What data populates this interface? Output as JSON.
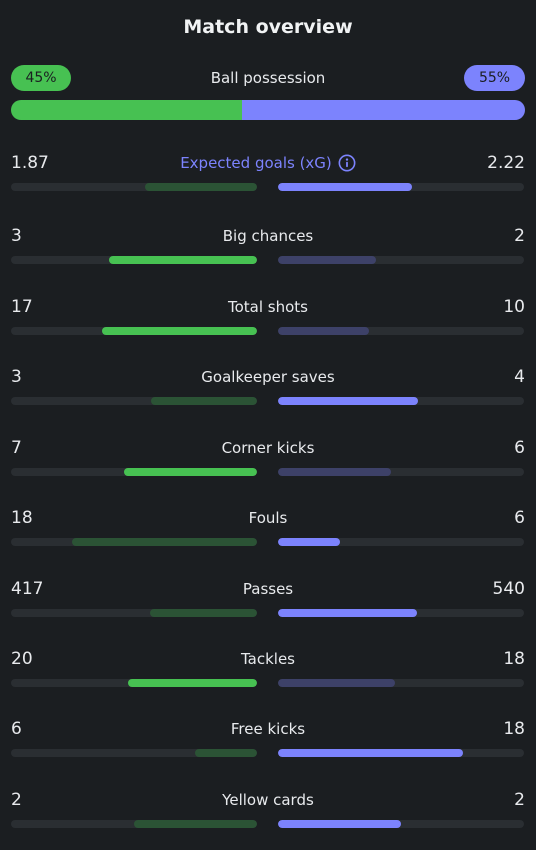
{
  "title": "Match overview",
  "possession": {
    "label": "Ball possession",
    "home": "45%",
    "away": "55%",
    "home_fraction": 0.45
  },
  "colors": {
    "home": "#47c152",
    "away": "#7c83fd",
    "home_dim": "#2b5335",
    "away_dim": "#3d4168",
    "track": "#2a2e32"
  },
  "stats": [
    {
      "label": "Expected goals (xG)",
      "home": "1.87",
      "away": "2.22",
      "home_fill": 0.457,
      "away_fill": 0.543,
      "home_leads": false,
      "accent": true,
      "info_icon": "info-icon"
    },
    {
      "label": "Big chances",
      "home": "3",
      "away": "2",
      "home_fill": 0.6,
      "away_fill": 0.4,
      "home_leads": true
    },
    {
      "label": "Total shots",
      "home": "17",
      "away": "10",
      "home_fill": 0.63,
      "away_fill": 0.37,
      "home_leads": true
    },
    {
      "label": "Goalkeeper saves",
      "home": "3",
      "away": "4",
      "home_fill": 0.43,
      "away_fill": 0.57,
      "home_leads": false
    },
    {
      "label": "Corner kicks",
      "home": "7",
      "away": "6",
      "home_fill": 0.54,
      "away_fill": 0.46,
      "home_leads": true
    },
    {
      "label": "Fouls",
      "home": "18",
      "away": "6",
      "home_fill": 0.75,
      "away_fill": 0.25,
      "home_leads": false
    },
    {
      "label": "Passes",
      "home": "417",
      "away": "540",
      "home_fill": 0.436,
      "away_fill": 0.564,
      "home_leads": false
    },
    {
      "label": "Tackles",
      "home": "20",
      "away": "18",
      "home_fill": 0.526,
      "away_fill": 0.474,
      "home_leads": true
    },
    {
      "label": "Free kicks",
      "home": "6",
      "away": "18",
      "home_fill": 0.25,
      "away_fill": 0.75,
      "home_leads": false
    },
    {
      "label": "Yellow cards",
      "home": "2",
      "away": "2",
      "home_fill": 0.5,
      "away_fill": 0.5,
      "home_leads": false
    }
  ]
}
